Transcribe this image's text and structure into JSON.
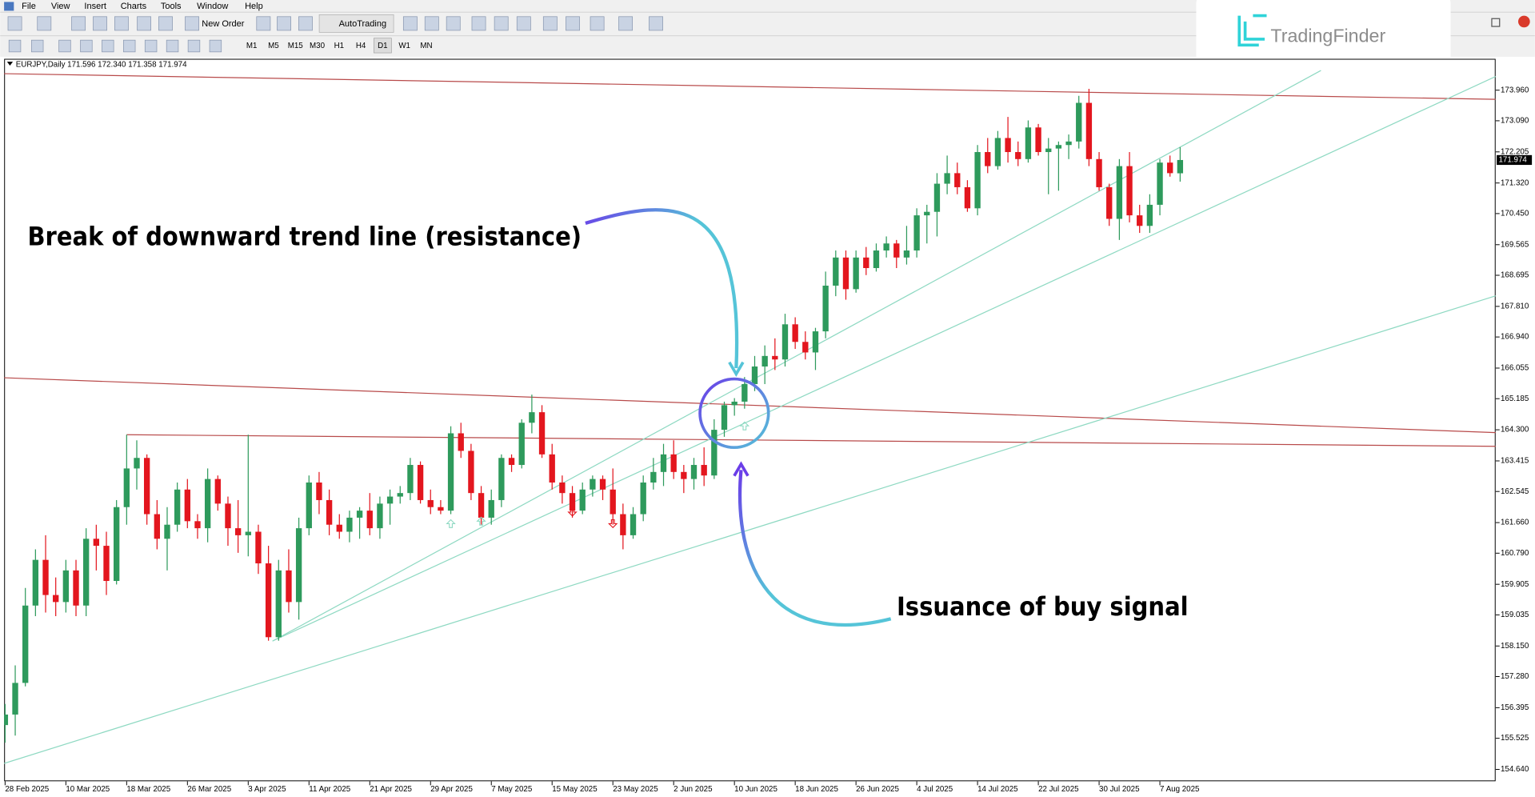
{
  "menu": [
    "File",
    "View",
    "Insert",
    "Charts",
    "Tools",
    "Window",
    "Help"
  ],
  "toolbar": {
    "new_order": "New Order",
    "auto_trading": "AutoTrading",
    "timeframes": [
      "M1",
      "M5",
      "M15",
      "M30",
      "H1",
      "H4",
      "D1",
      "W1",
      "MN"
    ]
  },
  "logo": "TradingFinder",
  "chart_data": {
    "type": "candlestick",
    "header": "EURJPY,Daily  171.596 172.340 171.358 171.974",
    "annotations": [
      "Break of downward trend line (resistance)",
      "Issuance of buy signal"
    ],
    "categories": [
      "28 Feb 2025",
      null,
      null,
      null,
      null,
      null,
      "10 Mar 2025",
      null,
      null,
      null,
      null,
      null,
      "18 Mar 2025",
      null,
      null,
      null,
      null,
      null,
      "26 Mar 2025",
      null,
      null,
      null,
      null,
      null,
      "3 Apr 2025",
      null,
      null,
      null,
      null,
      null,
      "11 Apr 2025",
      null,
      null,
      null,
      null,
      null,
      "21 Apr 2025",
      null,
      null,
      null,
      null,
      null,
      "29 Apr 2025",
      null,
      null,
      null,
      null,
      null,
      "7 May 2025",
      null,
      null,
      null,
      null,
      null,
      "15 May 2025",
      null,
      null,
      null,
      null,
      null,
      "23 May 2025",
      null,
      null,
      null,
      null,
      null,
      "2 Jun 2025",
      null,
      null,
      null,
      null,
      null,
      "10 Jun 2025",
      null,
      null,
      null,
      null,
      null,
      "18 Jun 2025",
      null,
      null,
      null,
      null,
      null,
      "26 Jun 2025",
      null,
      null,
      null,
      null,
      null,
      "4 Jul 2025",
      null,
      null,
      null,
      null,
      null,
      "14 Jul 2025",
      null,
      null,
      null,
      null,
      null,
      "22 Jul 2025",
      null,
      null,
      null,
      null,
      null,
      "30 Jul 2025",
      null,
      null,
      null,
      null,
      null,
      "7 Aug 2025",
      null,
      null
    ],
    "ohlc": [
      [
        155.9,
        156.5,
        155.4,
        156.2
      ],
      [
        156.2,
        157.6,
        155.6,
        157.1
      ],
      [
        157.1,
        159.8,
        157.0,
        159.3
      ],
      [
        159.3,
        160.9,
        159.0,
        160.6
      ],
      [
        160.6,
        161.3,
        159.1,
        159.6
      ],
      [
        159.6,
        160.1,
        159.0,
        159.4
      ],
      [
        159.4,
        160.6,
        159.1,
        160.3
      ],
      [
        160.3,
        160.6,
        159.0,
        159.3
      ],
      [
        159.3,
        161.5,
        159.0,
        161.2
      ],
      [
        161.2,
        161.6,
        160.3,
        161.0
      ],
      [
        161.0,
        161.4,
        159.6,
        160.0
      ],
      [
        160.0,
        162.3,
        159.9,
        162.1
      ],
      [
        162.1,
        164.16,
        161.6,
        163.2
      ],
      [
        163.2,
        164.0,
        162.6,
        163.5
      ],
      [
        163.5,
        163.6,
        161.6,
        161.9
      ],
      [
        161.9,
        162.3,
        160.9,
        161.2
      ],
      [
        161.2,
        162.1,
        160.3,
        161.6
      ],
      [
        161.6,
        162.8,
        161.4,
        162.6
      ],
      [
        162.6,
        162.9,
        161.5,
        161.7
      ],
      [
        161.7,
        161.9,
        161.2,
        161.5
      ],
      [
        161.5,
        163.2,
        161.1,
        162.9
      ],
      [
        162.9,
        163.0,
        162.0,
        162.2
      ],
      [
        162.2,
        162.4,
        161.0,
        161.5
      ],
      [
        161.5,
        162.3,
        160.8,
        161.3
      ],
      [
        161.3,
        164.16,
        160.7,
        161.4
      ],
      [
        161.4,
        161.6,
        160.2,
        160.5
      ],
      [
        160.5,
        161.0,
        158.3,
        158.4
      ],
      [
        158.4,
        160.6,
        158.3,
        160.3
      ],
      [
        160.3,
        160.9,
        159.1,
        159.4
      ],
      [
        159.4,
        161.8,
        158.9,
        161.5
      ],
      [
        161.5,
        163.0,
        161.3,
        162.8
      ],
      [
        162.8,
        163.1,
        161.9,
        162.3
      ],
      [
        162.3,
        162.6,
        161.3,
        161.6
      ],
      [
        161.6,
        161.9,
        161.2,
        161.4
      ],
      [
        161.4,
        162.0,
        161.1,
        161.8
      ],
      [
        161.8,
        162.1,
        161.2,
        162.0
      ],
      [
        162.0,
        162.5,
        161.3,
        161.5
      ],
      [
        161.5,
        162.4,
        161.2,
        162.2
      ],
      [
        162.2,
        162.6,
        161.6,
        162.4
      ],
      [
        162.4,
        162.7,
        162.2,
        162.5
      ],
      [
        162.5,
        163.5,
        162.3,
        163.3
      ],
      [
        163.3,
        163.4,
        162.2,
        162.3
      ],
      [
        162.3,
        162.6,
        161.9,
        162.1
      ],
      [
        162.1,
        162.3,
        161.9,
        162.0
      ],
      [
        162.0,
        164.4,
        161.9,
        164.2
      ],
      [
        164.2,
        164.5,
        163.5,
        163.7
      ],
      [
        163.7,
        163.9,
        162.3,
        162.5
      ],
      [
        162.5,
        162.7,
        161.6,
        161.8
      ],
      [
        161.8,
        162.6,
        161.6,
        162.3
      ],
      [
        162.3,
        163.6,
        162.1,
        163.5
      ],
      [
        163.5,
        163.6,
        163.1,
        163.3
      ],
      [
        163.3,
        164.6,
        163.2,
        164.5
      ],
      [
        164.5,
        165.3,
        164.2,
        164.8
      ],
      [
        164.8,
        165.0,
        163.5,
        163.6
      ],
      [
        163.6,
        163.9,
        162.6,
        162.8
      ],
      [
        162.8,
        163.0,
        162.2,
        162.5
      ],
      [
        162.5,
        162.7,
        161.8,
        162.0
      ],
      [
        162.0,
        162.8,
        161.9,
        162.6
      ],
      [
        162.6,
        163.0,
        162.4,
        162.9
      ],
      [
        162.9,
        163.0,
        162.3,
        162.6
      ],
      [
        162.6,
        163.2,
        161.6,
        161.9
      ],
      [
        161.9,
        162.2,
        160.9,
        161.3
      ],
      [
        161.3,
        162.1,
        161.2,
        161.9
      ],
      [
        161.9,
        163.0,
        161.7,
        162.8
      ],
      [
        162.8,
        163.5,
        162.6,
        163.1
      ],
      [
        163.1,
        163.9,
        162.7,
        163.6
      ],
      [
        163.6,
        164.0,
        162.9,
        163.1
      ],
      [
        163.1,
        163.3,
        162.5,
        162.9
      ],
      [
        162.9,
        163.5,
        162.6,
        163.3
      ],
      [
        163.3,
        163.8,
        162.7,
        163.0
      ],
      [
        163.0,
        164.6,
        162.9,
        164.3
      ],
      [
        164.3,
        165.1,
        164.1,
        165.0
      ],
      [
        165.0,
        165.2,
        164.7,
        165.1
      ],
      [
        165.1,
        165.8,
        164.9,
        165.6
      ],
      [
        165.6,
        166.4,
        165.4,
        166.1
      ],
      [
        166.1,
        166.7,
        165.6,
        166.4
      ],
      [
        166.4,
        166.9,
        166.0,
        166.3
      ],
      [
        166.3,
        167.6,
        166.1,
        167.3
      ],
      [
        167.3,
        167.5,
        166.6,
        166.8
      ],
      [
        166.8,
        167.1,
        166.3,
        166.5
      ],
      [
        166.5,
        167.2,
        166.0,
        167.1
      ],
      [
        167.1,
        168.8,
        166.9,
        168.4
      ],
      [
        168.4,
        169.4,
        168.1,
        169.2
      ],
      [
        169.2,
        169.4,
        168.0,
        168.3
      ],
      [
        168.3,
        169.4,
        168.2,
        169.2
      ],
      [
        169.2,
        169.5,
        168.7,
        168.9
      ],
      [
        168.9,
        169.6,
        168.8,
        169.4
      ],
      [
        169.4,
        169.8,
        169.2,
        169.6
      ],
      [
        169.6,
        169.7,
        168.9,
        169.2
      ],
      [
        169.2,
        170.1,
        169.0,
        169.4
      ],
      [
        169.4,
        170.6,
        169.2,
        170.4
      ],
      [
        170.4,
        170.7,
        169.6,
        170.5
      ],
      [
        170.5,
        171.6,
        169.8,
        171.3
      ],
      [
        171.3,
        172.1,
        171.0,
        171.6
      ],
      [
        171.6,
        171.9,
        171.0,
        171.2
      ],
      [
        171.2,
        171.4,
        170.5,
        170.6
      ],
      [
        170.6,
        172.4,
        170.4,
        172.2
      ],
      [
        172.2,
        172.6,
        171.6,
        171.8
      ],
      [
        171.8,
        172.8,
        171.7,
        172.6
      ],
      [
        172.6,
        173.2,
        171.9,
        172.2
      ],
      [
        172.2,
        172.5,
        171.8,
        172.0
      ],
      [
        172.0,
        173.1,
        171.9,
        172.9
      ],
      [
        172.9,
        173.0,
        172.1,
        172.2
      ],
      [
        172.2,
        172.6,
        171.0,
        172.3
      ],
      [
        172.3,
        172.5,
        171.1,
        172.4
      ],
      [
        172.4,
        172.7,
        172.0,
        172.5
      ],
      [
        172.5,
        173.8,
        172.3,
        173.6
      ],
      [
        173.6,
        174.0,
        171.8,
        172.0
      ],
      [
        172.0,
        172.2,
        171.1,
        171.2
      ],
      [
        171.2,
        171.3,
        170.1,
        170.3
      ],
      [
        170.3,
        172.0,
        169.7,
        171.8
      ],
      [
        171.8,
        172.2,
        170.2,
        170.4
      ],
      [
        170.4,
        170.7,
        169.9,
        170.1
      ],
      [
        170.1,
        171.0,
        169.9,
        170.7
      ],
      [
        170.7,
        172.0,
        170.4,
        171.9
      ],
      [
        171.9,
        172.1,
        171.5,
        171.6
      ],
      [
        171.596,
        172.34,
        171.358,
        171.974
      ]
    ],
    "up_color": "#2e9a5c",
    "down_color": "#e3161e",
    "current_price": 171.974,
    "xlim": [
      -0.1,
      147.15
    ],
    "ylim": [
      154.3,
      174.52
    ],
    "yticks": [
      {
        "value": 173.96,
        "label": "173.960"
      },
      {
        "value": 173.09,
        "label": "173.090"
      },
      172.205,
      {
        "value": 171.32,
        "label": "171.320"
      },
      {
        "value": 170.45,
        "label": "170.450"
      },
      169.565,
      168.695,
      {
        "value": 167.81,
        "label": "167.810"
      },
      {
        "value": 166.94,
        "label": "166.940"
      },
      166.055,
      165.185,
      {
        "value": 164.3,
        "label": "164.300"
      },
      163.415,
      162.545,
      {
        "value": 161.66,
        "label": "161.660"
      },
      {
        "value": 160.79,
        "label": "160.790"
      },
      159.905,
      159.035,
      {
        "value": 158.15,
        "label": "158.150"
      },
      {
        "value": 157.28,
        "label": "157.280"
      },
      156.395,
      155.525,
      {
        "value": 154.64,
        "label": "154.640"
      }
    ],
    "trend_lines": [
      {
        "color": "#b84a4a",
        "x": [
          -0.1,
          147.15
        ],
        "y": [
          174.43,
          173.7
        ]
      },
      {
        "color": "#b84a4a",
        "x": [
          -0.1,
          147.15
        ],
        "y": [
          165.78,
          164.22
        ]
      },
      {
        "color": "#b84a4a",
        "x": [
          12,
          147.15
        ],
        "y": [
          164.16,
          163.83
        ]
      },
      {
        "color": "#8ed9c2",
        "x": [
          -0.1,
          147.15
        ],
        "y": [
          154.81,
          168.11
        ]
      },
      {
        "color": "#8ed9c2",
        "x": [
          26.4,
          129.9
        ],
        "y": [
          158.29,
          174.52
        ]
      },
      {
        "color": "#8ed9c2",
        "x": [
          26.4,
          147.15
        ],
        "y": [
          158.29,
          174.35
        ]
      }
    ],
    "signals": [
      {
        "index": 44,
        "price": 161.63,
        "direction": "up"
      },
      {
        "index": 47,
        "price": 161.7,
        "direction": "up"
      },
      {
        "index": 56,
        "price": 161.96,
        "direction": "down"
      },
      {
        "index": 60,
        "price": 161.63,
        "direction": "down"
      },
      {
        "index": 73,
        "price": 164.41,
        "direction": "up"
      }
    ]
  }
}
